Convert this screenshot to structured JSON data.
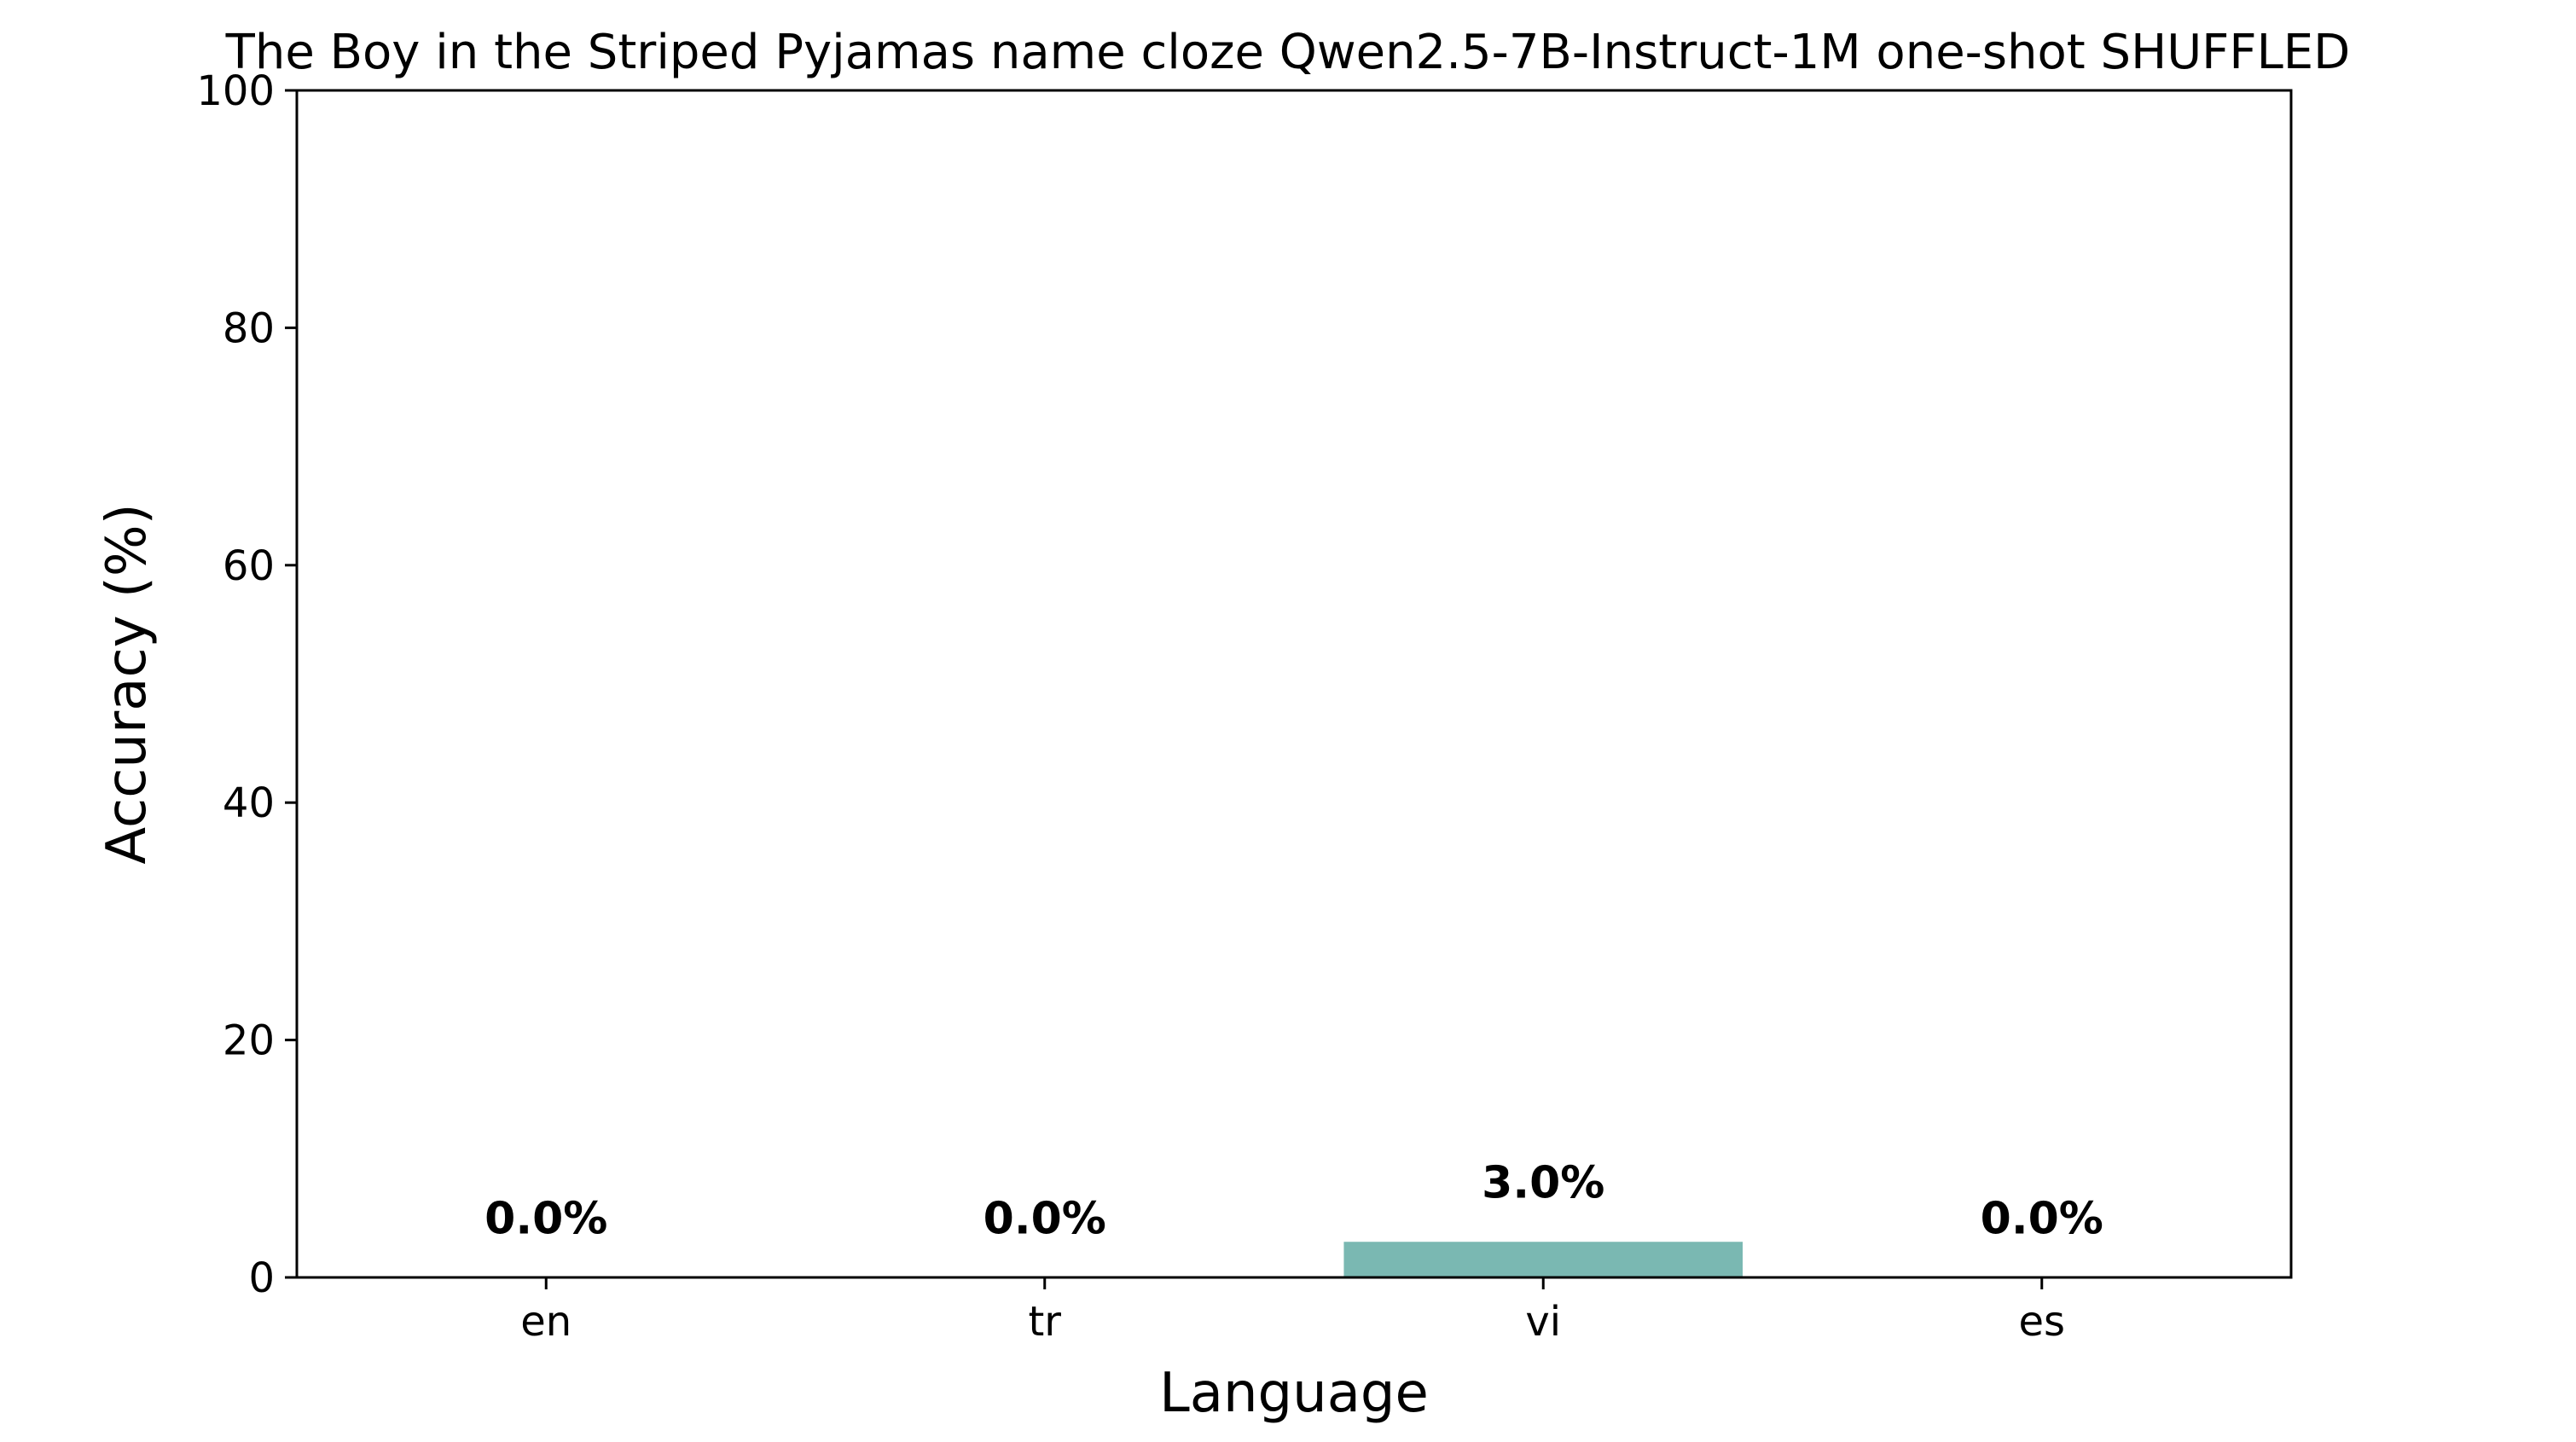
{
  "chart_data": {
    "type": "bar",
    "title": "The Boy in the Striped Pyjamas name cloze Qwen2.5-7B-Instruct-1M one-shot SHUFFLED",
    "xlabel": "Language",
    "ylabel": "Accuracy (%)",
    "categories": [
      "en",
      "tr",
      "vi",
      "es"
    ],
    "values": [
      0.0,
      0.0,
      3.0,
      0.0
    ],
    "value_labels": [
      "0.0%",
      "0.0%",
      "3.0%",
      "0.0%"
    ],
    "ylim": [
      0,
      100
    ],
    "yticks": [
      0,
      20,
      40,
      60,
      80,
      100
    ],
    "grid": false,
    "bar_color": "#7ab8b2"
  }
}
